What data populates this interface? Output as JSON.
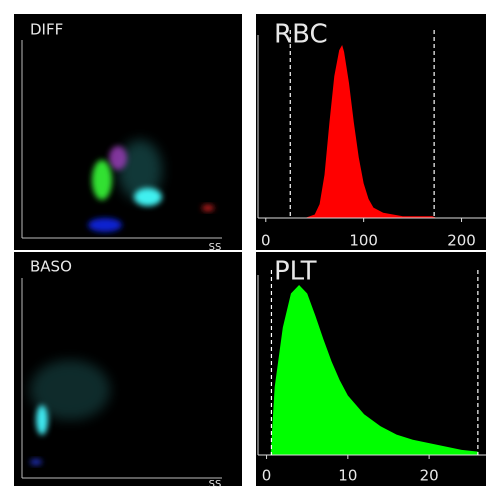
{
  "chart_data": [
    {
      "type": "scatter",
      "title": "DIFF",
      "x_label": "SS"
    },
    {
      "type": "scatter",
      "title": "BASO",
      "x_label": "SS"
    },
    {
      "type": "area",
      "title": "RBC",
      "color": "#ff0000",
      "x": [
        40,
        50,
        55,
        60,
        65,
        70,
        75,
        78,
        80,
        85,
        90,
        95,
        100,
        105,
        110,
        120,
        130,
        140,
        150,
        160,
        170,
        175
      ],
      "values": [
        0,
        2,
        8,
        25,
        55,
        82,
        97,
        100,
        96,
        78,
        55,
        35,
        20,
        11,
        6,
        3,
        2,
        1,
        1,
        1,
        1,
        0
      ],
      "xlim": [
        -10,
        225
      ],
      "ylim": [
        0,
        100
      ],
      "xticks": [
        0,
        100,
        200
      ],
      "discriminators": [
        25,
        172
      ]
    },
    {
      "type": "area",
      "title": "PLT",
      "color": "#00ff00",
      "x": [
        0.5,
        1,
        2,
        3,
        4,
        5,
        6,
        7,
        8,
        9,
        10,
        12,
        14,
        16,
        18,
        20,
        22,
        24,
        26
      ],
      "values": [
        0,
        40,
        75,
        95,
        100,
        95,
        82,
        68,
        55,
        44,
        35,
        24,
        17,
        12,
        9,
        7,
        5,
        3,
        2
      ],
      "xlim": [
        -1.3,
        27
      ],
      "ylim": [
        0,
        100
      ],
      "xticks": [
        0,
        10,
        20
      ],
      "discriminators": [
        0.6,
        26
      ]
    }
  ]
}
